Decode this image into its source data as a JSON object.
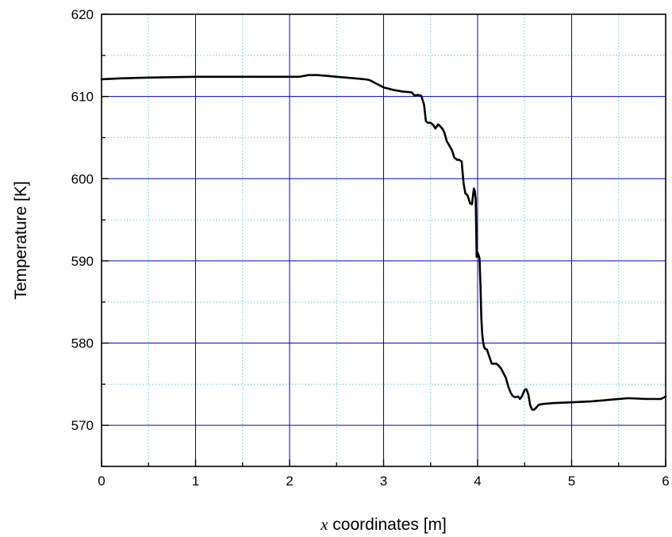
{
  "chart_data": {
    "type": "line",
    "title": "",
    "xlabel_var": "x",
    "xlabel_rest": " coordinates [m]",
    "ylabel": "Temperature [K]",
    "xlim": [
      0,
      6
    ],
    "ylim": [
      565,
      620
    ],
    "grid": true,
    "legend": "none",
    "colors": {
      "line": "#000000",
      "major_grid": "#0000cc",
      "minor_grid": "#66cccc",
      "axis": "#000000"
    },
    "x_ticks": [
      {
        "value": 0,
        "label": "0"
      },
      {
        "value": 1,
        "label": "1"
      },
      {
        "value": 2,
        "label": "2"
      },
      {
        "value": 3,
        "label": "3"
      },
      {
        "value": 4,
        "label": "4"
      },
      {
        "value": 5,
        "label": "5"
      },
      {
        "value": 6,
        "label": "6"
      }
    ],
    "y_ticks": [
      {
        "value": 570,
        "label": "570"
      },
      {
        "value": 580,
        "label": "580"
      },
      {
        "value": 590,
        "label": "590"
      },
      {
        "value": 600,
        "label": "600"
      },
      {
        "value": 610,
        "label": "610"
      },
      {
        "value": 620,
        "label": "620"
      }
    ],
    "series": [
      {
        "x": [
          0,
          0.2,
          0.5,
          1.0,
          1.5,
          2.0,
          2.1,
          2.2,
          2.3,
          2.4,
          2.5,
          2.6,
          2.7,
          2.8,
          2.85,
          2.9,
          3.0,
          3.1,
          3.2,
          3.3,
          3.33,
          3.36,
          3.4,
          3.43,
          3.45,
          3.47,
          3.5,
          3.53,
          3.55,
          3.58,
          3.6,
          3.63,
          3.65,
          3.67,
          3.7,
          3.73,
          3.75,
          3.78,
          3.8,
          3.83,
          3.85,
          3.87,
          3.89,
          3.9,
          3.92,
          3.94,
          3.96,
          3.97,
          3.98,
          3.99,
          4.0,
          4.01,
          4.02,
          4.03,
          4.04,
          4.05,
          4.06,
          4.07,
          4.08,
          4.1,
          4.12,
          4.15,
          4.18,
          4.2,
          4.22,
          4.25,
          4.3,
          4.33,
          4.35,
          4.37,
          4.4,
          4.43,
          4.45,
          4.47,
          4.5,
          4.52,
          4.54,
          4.56,
          4.58,
          4.6,
          4.62,
          4.65,
          4.7,
          4.8,
          5.0,
          5.2,
          5.4,
          5.6,
          5.8,
          5.95,
          6.0
        ],
        "y": [
          612.1,
          612.2,
          612.3,
          612.4,
          612.4,
          612.4,
          612.4,
          612.6,
          612.6,
          612.5,
          612.4,
          612.3,
          612.2,
          612.1,
          612.0,
          611.7,
          611.1,
          610.8,
          610.6,
          610.5,
          610.1,
          610.2,
          610.1,
          609.0,
          607.0,
          606.8,
          606.8,
          606.5,
          606.1,
          606.6,
          606.4,
          606.0,
          605.5,
          604.6,
          604.0,
          603.4,
          602.6,
          602.3,
          602.3,
          602.1,
          599.5,
          598.2,
          598.0,
          597.7,
          597.0,
          596.9,
          598.8,
          598.5,
          597.5,
          590.5,
          591.0,
          590.7,
          590.3,
          587.0,
          583.0,
          581.0,
          580.0,
          579.5,
          579.3,
          579.2,
          578.5,
          577.5,
          577.5,
          577.5,
          577.3,
          576.9,
          575.8,
          574.6,
          574.0,
          573.6,
          573.4,
          573.5,
          573.2,
          573.5,
          574.3,
          574.4,
          573.7,
          572.4,
          571.9,
          571.9,
          572.1,
          572.5,
          572.6,
          572.7,
          572.8,
          572.9,
          573.1,
          573.3,
          573.2,
          573.2,
          573.5
        ]
      }
    ]
  }
}
